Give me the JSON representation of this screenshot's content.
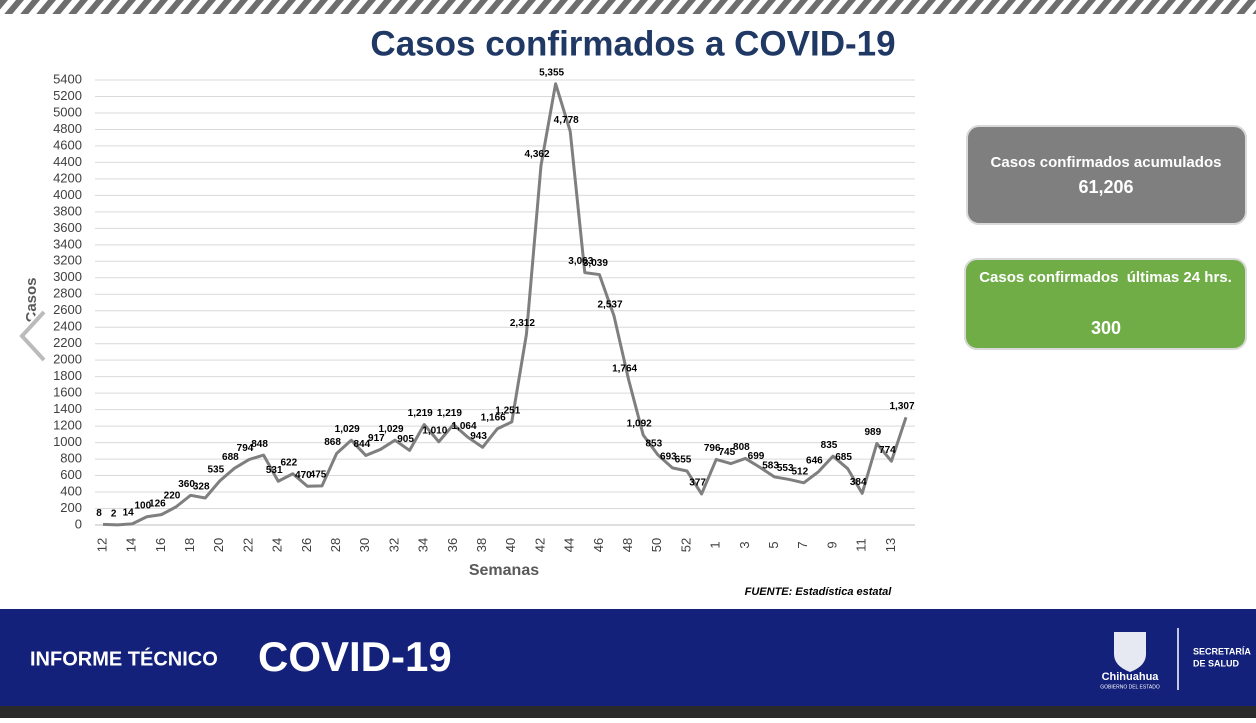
{
  "chart_data": {
    "type": "line",
    "title": "Casos confirmados a COVID-19",
    "x_label": "Semanas",
    "y_label": "Casos",
    "source": "FUENTE: Estadística estatal",
    "categories": [
      "12",
      null,
      "14",
      null,
      "16",
      null,
      "18",
      null,
      "20",
      null,
      "22",
      null,
      "24",
      null,
      "26",
      null,
      "28",
      null,
      "30",
      null,
      "32",
      null,
      "34",
      null,
      "36",
      null,
      "38",
      null,
      "40",
      null,
      "42",
      null,
      "44",
      null,
      "46",
      null,
      "48",
      null,
      "50",
      null,
      "52",
      null,
      "1",
      null,
      "3",
      null,
      "5",
      null,
      "7",
      null,
      "9",
      null,
      "11",
      null,
      "13",
      null
    ],
    "values": [
      8,
      2,
      14,
      100,
      126,
      220,
      360,
      328,
      535,
      688,
      794,
      848,
      531,
      622,
      470,
      475,
      868,
      1029,
      844,
      917,
      1029,
      905,
      1219,
      1010,
      1219,
      1064,
      943,
      1166,
      1251,
      2312,
      4362,
      5355,
      4778,
      3063,
      3039,
      2537,
      1764,
      1092,
      853,
      693,
      655,
      377,
      796,
      745,
      808,
      699,
      583,
      553,
      512,
      646,
      835,
      685,
      384,
      989,
      774,
      1307
    ],
    "value_labels": [
      "8",
      "2",
      "14",
      "100",
      "126",
      "220",
      "360",
      "328",
      "535",
      "688",
      "794",
      "848",
      "531",
      "622",
      "470",
      "475",
      "868",
      "1,029",
      "844",
      "917",
      "1,029",
      "905",
      "1,219",
      "1,010",
      "1,219",
      "1,064",
      "943",
      "1,166",
      "1,251",
      "2,312",
      "4,362",
      "5,355",
      "4,778",
      "3,063",
      "3,039",
      "2,537",
      "1,764",
      "1,092",
      "853",
      "693",
      "655",
      "377",
      "796",
      "745",
      "808",
      "699",
      "583",
      "553",
      "512",
      "646",
      "835",
      "685",
      "384",
      "989",
      "774",
      "1,307"
    ],
    "color": "#7f7f7f",
    "ylim": [
      0,
      5400
    ],
    "yticks": [
      0,
      200,
      400,
      600,
      800,
      1000,
      1200,
      1400,
      1600,
      1800,
      2000,
      2200,
      2400,
      2600,
      2800,
      3000,
      3200,
      3400,
      3600,
      3800,
      4000,
      4200,
      4400,
      4600,
      4800,
      5000,
      5200,
      5400
    ],
    "grid": true
  },
  "panels": [
    {
      "label": "Casos confirmados acumulados",
      "value": "61,206"
    },
    {
      "label": "Casos confirmados  últimas 24 hrs.",
      "value": "300"
    }
  ],
  "footer": {
    "report": "INFORME TÉCNICO",
    "topic": "COVID-19",
    "state": "Chihuahua",
    "state_sub": "GOBIERNO DEL ESTADO",
    "dept_1": "SECRETARÍA",
    "dept_2": "DE SALUD"
  }
}
